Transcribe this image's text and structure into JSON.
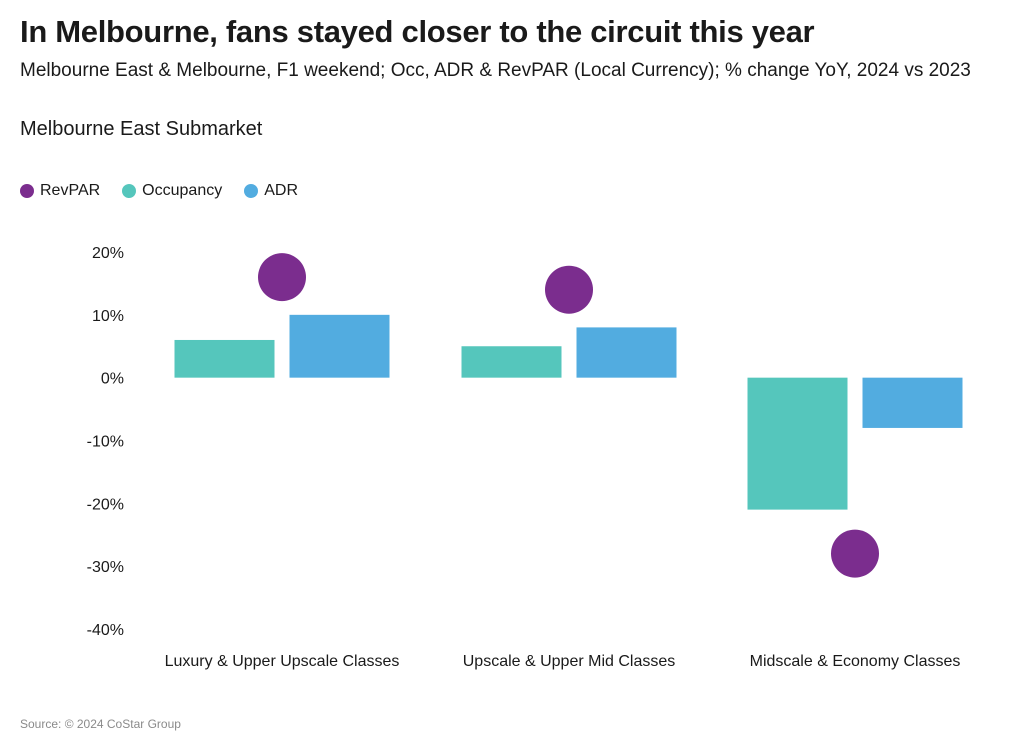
{
  "title": "In Melbourne, fans stayed closer to the circuit this year",
  "subtitle": "Melbourne East & Melbourne, F1 weekend; Occ, ADR & RevPAR (Local Currency); % change YoY, 2024 vs 2023",
  "section_title": "Melbourne East Submarket",
  "legend": [
    {
      "name": "RevPAR",
      "color": "#7B2D8E"
    },
    {
      "name": "Occupancy",
      "color": "#55C6BC"
    },
    {
      "name": "ADR",
      "color": "#52ACE0"
    }
  ],
  "source": "Source: © 2024 CoStar Group",
  "chart_data": {
    "type": "bar",
    "categories": [
      "Luxury & Upper Upscale Classes",
      "Upscale & Upper Mid Classes",
      "Midscale & Economy Classes"
    ],
    "series": [
      {
        "name": "Occupancy",
        "type": "bar",
        "color": "#55C6BC",
        "values": [
          6,
          5,
          -21
        ]
      },
      {
        "name": "ADR",
        "type": "bar",
        "color": "#52ACE0",
        "values": [
          10,
          8,
          -8
        ]
      },
      {
        "name": "RevPAR",
        "type": "dot",
        "color": "#7B2D8E",
        "values": [
          16,
          14,
          -28
        ]
      }
    ],
    "ylim": [
      -40,
      20
    ],
    "yticks": [
      20,
      10,
      0,
      -10,
      -20,
      -30,
      -40
    ],
    "ytick_labels": [
      "20%",
      "10%",
      "0%",
      "-10%",
      "-20%",
      "-30%",
      "-40%"
    ],
    "grid": false,
    "legend_position": "top-left"
  }
}
